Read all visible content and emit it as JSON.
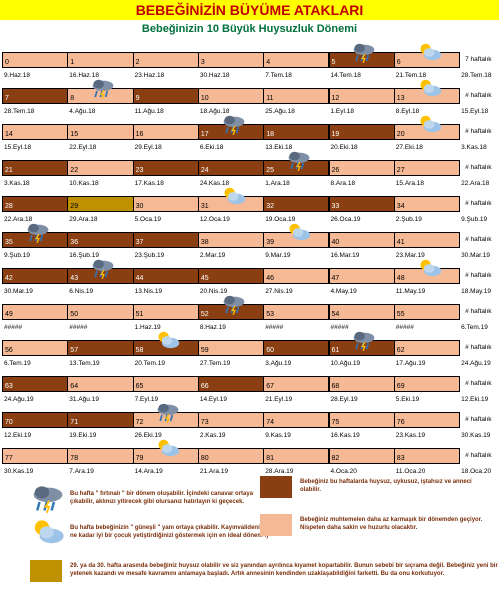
{
  "header": {
    "title": "BEBEĞİNİZİN BÜYÜME ATAKLARI",
    "subtitle": "Bebeğinizin 10 Büyük Huysuzluk Dönemi"
  },
  "palette": {
    "L": "#f6b995",
    "D": "#8a3f12",
    "G": "#bf9000"
  },
  "rows": [
    {
      "weeks": [
        {
          "n": 0,
          "c": "L"
        },
        {
          "n": 1,
          "c": "L"
        },
        {
          "n": 2,
          "c": "L"
        },
        {
          "n": 3,
          "c": "L"
        },
        {
          "n": 4,
          "c": "L"
        },
        {
          "n": 5,
          "c": "D",
          "icon": "storm"
        },
        {
          "n": 6,
          "c": "L",
          "icon": "sun"
        }
      ],
      "side": "7   haftalık",
      "dates": [
        "9.Haz.18",
        "16.Haz.18",
        "23.Haz.18",
        "30.Haz.18",
        "7.Tem.18",
        "14.Tem.18",
        "21.Tem.18",
        "28.Tem.18"
      ]
    },
    {
      "weeks": [
        {
          "n": 7,
          "c": "D"
        },
        {
          "n": 8,
          "c": "L",
          "icon": "storm"
        },
        {
          "n": 9,
          "c": "D"
        },
        {
          "n": 10,
          "c": "L"
        },
        {
          "n": 11,
          "c": "L"
        },
        {
          "n": 12,
          "c": "L"
        },
        {
          "n": 13,
          "c": "L",
          "icon": "sun"
        }
      ],
      "side": "#   haftalık",
      "dates": [
        "28.Tem.18",
        "4.Ağu.18",
        "11.Ağu.18",
        "18.Ağu.18",
        "25.Ağu.18",
        "1.Eyl.18",
        "8.Eyl.18",
        "15.Eyl.18"
      ]
    },
    {
      "weeks": [
        {
          "n": 14,
          "c": "L"
        },
        {
          "n": 15,
          "c": "L"
        },
        {
          "n": 16,
          "c": "L"
        },
        {
          "n": 17,
          "c": "D",
          "icon": "storm"
        },
        {
          "n": 18,
          "c": "D"
        },
        {
          "n": 19,
          "c": "D"
        },
        {
          "n": 20,
          "c": "L",
          "icon": "sun"
        }
      ],
      "side": "#   haftalık",
      "dates": [
        "15.Eyl.18",
        "22.Eyl.18",
        "29.Eyl.18",
        "6.Eki.18",
        "13.Eki.18",
        "20.Eki.18",
        "27.Eki.18",
        "3.Kas.18"
      ]
    },
    {
      "weeks": [
        {
          "n": 21,
          "c": "D"
        },
        {
          "n": 22,
          "c": "L"
        },
        {
          "n": 23,
          "c": "D"
        },
        {
          "n": 24,
          "c": "D"
        },
        {
          "n": 25,
          "c": "D",
          "icon": "storm"
        },
        {
          "n": 26,
          "c": "L"
        },
        {
          "n": 27,
          "c": "L"
        }
      ],
      "side": "#   haftalık",
      "dates": [
        "3.Kas.18",
        "10.Kas.18",
        "17.Kas.18",
        "24.Kas.18",
        "1.Ara.18",
        "8.Ara.18",
        "15.Ara.18",
        "22.Ara.18"
      ]
    },
    {
      "weeks": [
        {
          "n": 28,
          "c": "D"
        },
        {
          "n": 29,
          "c": "G"
        },
        {
          "n": 30,
          "c": "L"
        },
        {
          "n": 31,
          "c": "L",
          "icon": "sun"
        },
        {
          "n": 32,
          "c": "D"
        },
        {
          "n": 33,
          "c": "D"
        },
        {
          "n": 34,
          "c": "L"
        }
      ],
      "side": "#   haftalık",
      "dates": [
        "22.Ara.18",
        "29.Ara.18",
        "5.Oca.19",
        "12.Oca.19",
        "19.Oca.19",
        "26.Oca.19",
        "2.Şub.19",
        "9.Şub.19"
      ]
    },
    {
      "weeks": [
        {
          "n": 35,
          "c": "D",
          "icon": "storm"
        },
        {
          "n": 36,
          "c": "D"
        },
        {
          "n": 37,
          "c": "D"
        },
        {
          "n": 38,
          "c": "L"
        },
        {
          "n": 39,
          "c": "L",
          "icon": "sun"
        },
        {
          "n": 40,
          "c": "L"
        },
        {
          "n": 41,
          "c": "L"
        }
      ],
      "side": "#   haftalık",
      "dates": [
        "9.Şub.19",
        "16.Şub.19",
        "23.Şub.19",
        "2.Mar.19",
        "9.Mar.19",
        "16.Mar.19",
        "23.Mar.19",
        "30.Mar.19"
      ]
    },
    {
      "weeks": [
        {
          "n": 42,
          "c": "D"
        },
        {
          "n": 43,
          "c": "D",
          "icon": "storm"
        },
        {
          "n": 44,
          "c": "D"
        },
        {
          "n": 45,
          "c": "D"
        },
        {
          "n": 46,
          "c": "L"
        },
        {
          "n": 47,
          "c": "L"
        },
        {
          "n": 48,
          "c": "L",
          "icon": "sun"
        }
      ],
      "side": "#   haftalık",
      "dates": [
        "30.Mar.19",
        "6.Nis.19",
        "13.Nis.19",
        "20.Nis.19",
        "27.Nis.19",
        "4.May.19",
        "11.May.19",
        "18.May.19"
      ]
    },
    {
      "weeks": [
        {
          "n": 49,
          "c": "L"
        },
        {
          "n": 50,
          "c": "L"
        },
        {
          "n": 51,
          "c": "L"
        },
        {
          "n": 52,
          "c": "D",
          "icon": "storm"
        },
        {
          "n": 53,
          "c": "L"
        },
        {
          "n": 54,
          "c": "L"
        },
        {
          "n": 55,
          "c": "L"
        }
      ],
      "side": "#   haftalık",
      "dates": [
        "#####",
        "#####",
        "1.Haz.19",
        "8.Haz.19",
        "#####",
        "#####",
        "#####",
        "6.Tem.19"
      ]
    },
    {
      "weeks": [
        {
          "n": 56,
          "c": "L"
        },
        {
          "n": 57,
          "c": "D"
        },
        {
          "n": 58,
          "c": "D",
          "icon": "sun"
        },
        {
          "n": 59,
          "c": "L"
        },
        {
          "n": 60,
          "c": "D"
        },
        {
          "n": 61,
          "c": "D",
          "icon": "storm"
        },
        {
          "n": 62,
          "c": "L"
        }
      ],
      "side": "#   haftalık",
      "dates": [
        "6.Tem.19",
        "13.Tem.19",
        "20.Tem.19",
        "27.Tem.19",
        "3.Ağu.19",
        "10.Ağu.19",
        "17.Ağu.19",
        "24.Ağu.19"
      ]
    },
    {
      "weeks": [
        {
          "n": 63,
          "c": "D"
        },
        {
          "n": 64,
          "c": "L"
        },
        {
          "n": 65,
          "c": "L"
        },
        {
          "n": 66,
          "c": "D"
        },
        {
          "n": 67,
          "c": "L"
        },
        {
          "n": 68,
          "c": "L"
        },
        {
          "n": 69,
          "c": "L"
        }
      ],
      "side": "#   haftalık",
      "dates": [
        "24.Ağu.19",
        "31.Ağu.19",
        "7.Eyl.19",
        "14.Eyl.19",
        "21.Eyl.19",
        "28.Eyl.19",
        "5.Eki.19",
        "12.Eki.19"
      ]
    },
    {
      "weeks": [
        {
          "n": 70,
          "c": "D"
        },
        {
          "n": 71,
          "c": "D"
        },
        {
          "n": 72,
          "c": "L",
          "icon": "storm"
        },
        {
          "n": 73,
          "c": "L"
        },
        {
          "n": 74,
          "c": "L"
        },
        {
          "n": 75,
          "c": "L"
        },
        {
          "n": 76,
          "c": "L"
        }
      ],
      "side": "#   haftalık",
      "dates": [
        "12.Eki.19",
        "19.Eki.19",
        "26.Eki.19",
        "2.Kas.19",
        "9.Kas.19",
        "16.Kas.19",
        "23.Kas.19",
        "30.Kas.19"
      ]
    },
    {
      "weeks": [
        {
          "n": 77,
          "c": "L"
        },
        {
          "n": 78,
          "c": "L"
        },
        {
          "n": 79,
          "c": "L",
          "icon": "sun"
        },
        {
          "n": 80,
          "c": "L"
        },
        {
          "n": 81,
          "c": "L"
        },
        {
          "n": 82,
          "c": "L"
        },
        {
          "n": 83,
          "c": "L"
        }
      ],
      "side": "#   haftalık",
      "dates": [
        "30.Kas.19",
        "7.Ara.19",
        "14.Ara.19",
        "21.Ara.19",
        "28.Ara.19",
        "4.Oca.20",
        "11.Oca.20",
        "18.Oca.20"
      ]
    }
  ],
  "legend": [
    {
      "mark": "storm",
      "text": "Bu hafta \" fırtınalı \" bir dönem oluşabilir. İçindeki canavar ortaya çıkabilir, aklınızı yitirecek gibi olursanız hatırlayın ki geçecek."
    },
    {
      "mark": "sun",
      "text": "Bu hafta bebeğinizin \" güneşli \" yanı ortaya çıkabilir. Kayınvalidenize ne kadar iyi bir çocuk yetiştirdiğinizi göstermek için en ideal dönem :)"
    },
    {
      "mark": "G",
      "text": "29. ya da 30. hafta arasında bebeğiniz huysuz olabilir ve siz yanından ayrılınca kıyamet kopartabilir. Bunun sebebi bir sıçrama değil. Bebeğiniz yeni bir yetenek kazandı ve mesafe kavramını anlamaya başladı. Artık annesinin kendinden uzaklaşabildiğini farketti. Bu da onu korkutuyor."
    },
    {
      "mark": "D",
      "text": "Bebeğiniz bu haftalarda huysuz, uykusuz, iştahsız ve anneci olabilir."
    },
    {
      "mark": "L",
      "text": "Bebeğiniz muhtemelen daha az karmaşık bir dönemden geçiyor. Nispeten daha sakin ve huzurlu olacaktır."
    }
  ]
}
